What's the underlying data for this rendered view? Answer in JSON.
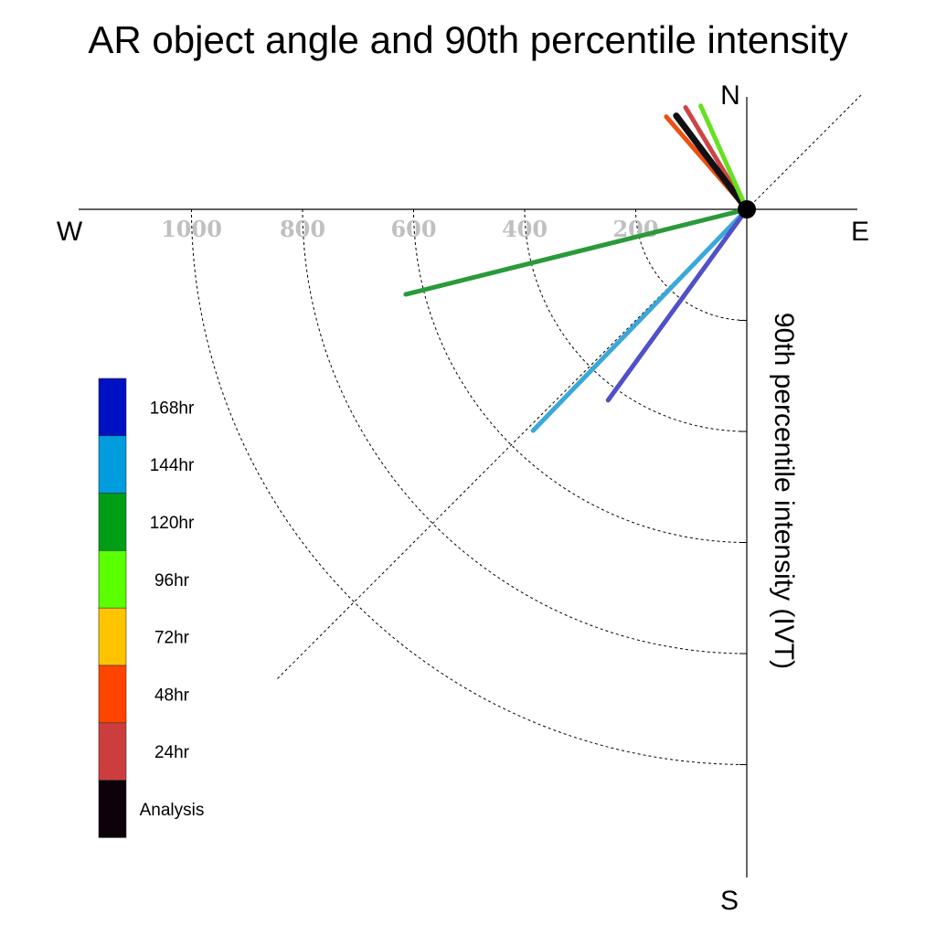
{
  "chart_data": {
    "type": "polar-vector",
    "title": "AR object angle and 90th percentile intensity",
    "ylabel": "90th percentile intensity (IVT)",
    "compass": {
      "north": "N",
      "south": "S",
      "east": "E",
      "west": "W"
    },
    "radius_max": 1200,
    "rings": [
      200,
      400,
      600,
      800,
      1000
    ],
    "ring_labels": [
      "200",
      "400",
      "600",
      "800",
      "1000"
    ],
    "diagonal_angle_deg": 45,
    "legend": [
      {
        "label": "168hr",
        "color": "#0011c4"
      },
      {
        "label": "144hr",
        "color": "#009cde"
      },
      {
        "label": "120hr",
        "color": "#009e17"
      },
      {
        "label": "96hr",
        "color": "#5aff00"
      },
      {
        "label": "72hr",
        "color": "#ffc400"
      },
      {
        "label": "48hr",
        "color": "#ff4400"
      },
      {
        "label": "24hr",
        "color": "#cc3d3d"
      },
      {
        "label": "Analysis",
        "color": "#0d0209"
      }
    ],
    "series": [
      {
        "name": "24hr",
        "color": "#cc3d3d",
        "line_color": "#cc4545",
        "bearing_deg": 329,
        "intensity": 214
      },
      {
        "name": "48hr",
        "color": "#ff4400",
        "line_color": "#f05010",
        "bearing_deg": 319,
        "intensity": 221
      },
      {
        "name": "Analysis",
        "color": "#0d0209",
        "line_color": "#111111",
        "bearing_deg": 323,
        "intensity": 211
      },
      {
        "name": "96hr",
        "color": "#5aff00",
        "line_color": "#66e020",
        "bearing_deg": 336,
        "intensity": 204
      },
      {
        "name": "120hr",
        "color": "#009e17",
        "line_color": "#2a9a3a",
        "bearing_deg": 256,
        "intensity": 633
      },
      {
        "name": "144hr",
        "color": "#009cde",
        "line_color": "#3aa8d8",
        "bearing_deg": 224,
        "intensity": 554
      },
      {
        "name": "168hr",
        "color": "#0011c4",
        "line_color": "#5050c8",
        "bearing_deg": 216,
        "intensity": 425
      }
    ]
  }
}
